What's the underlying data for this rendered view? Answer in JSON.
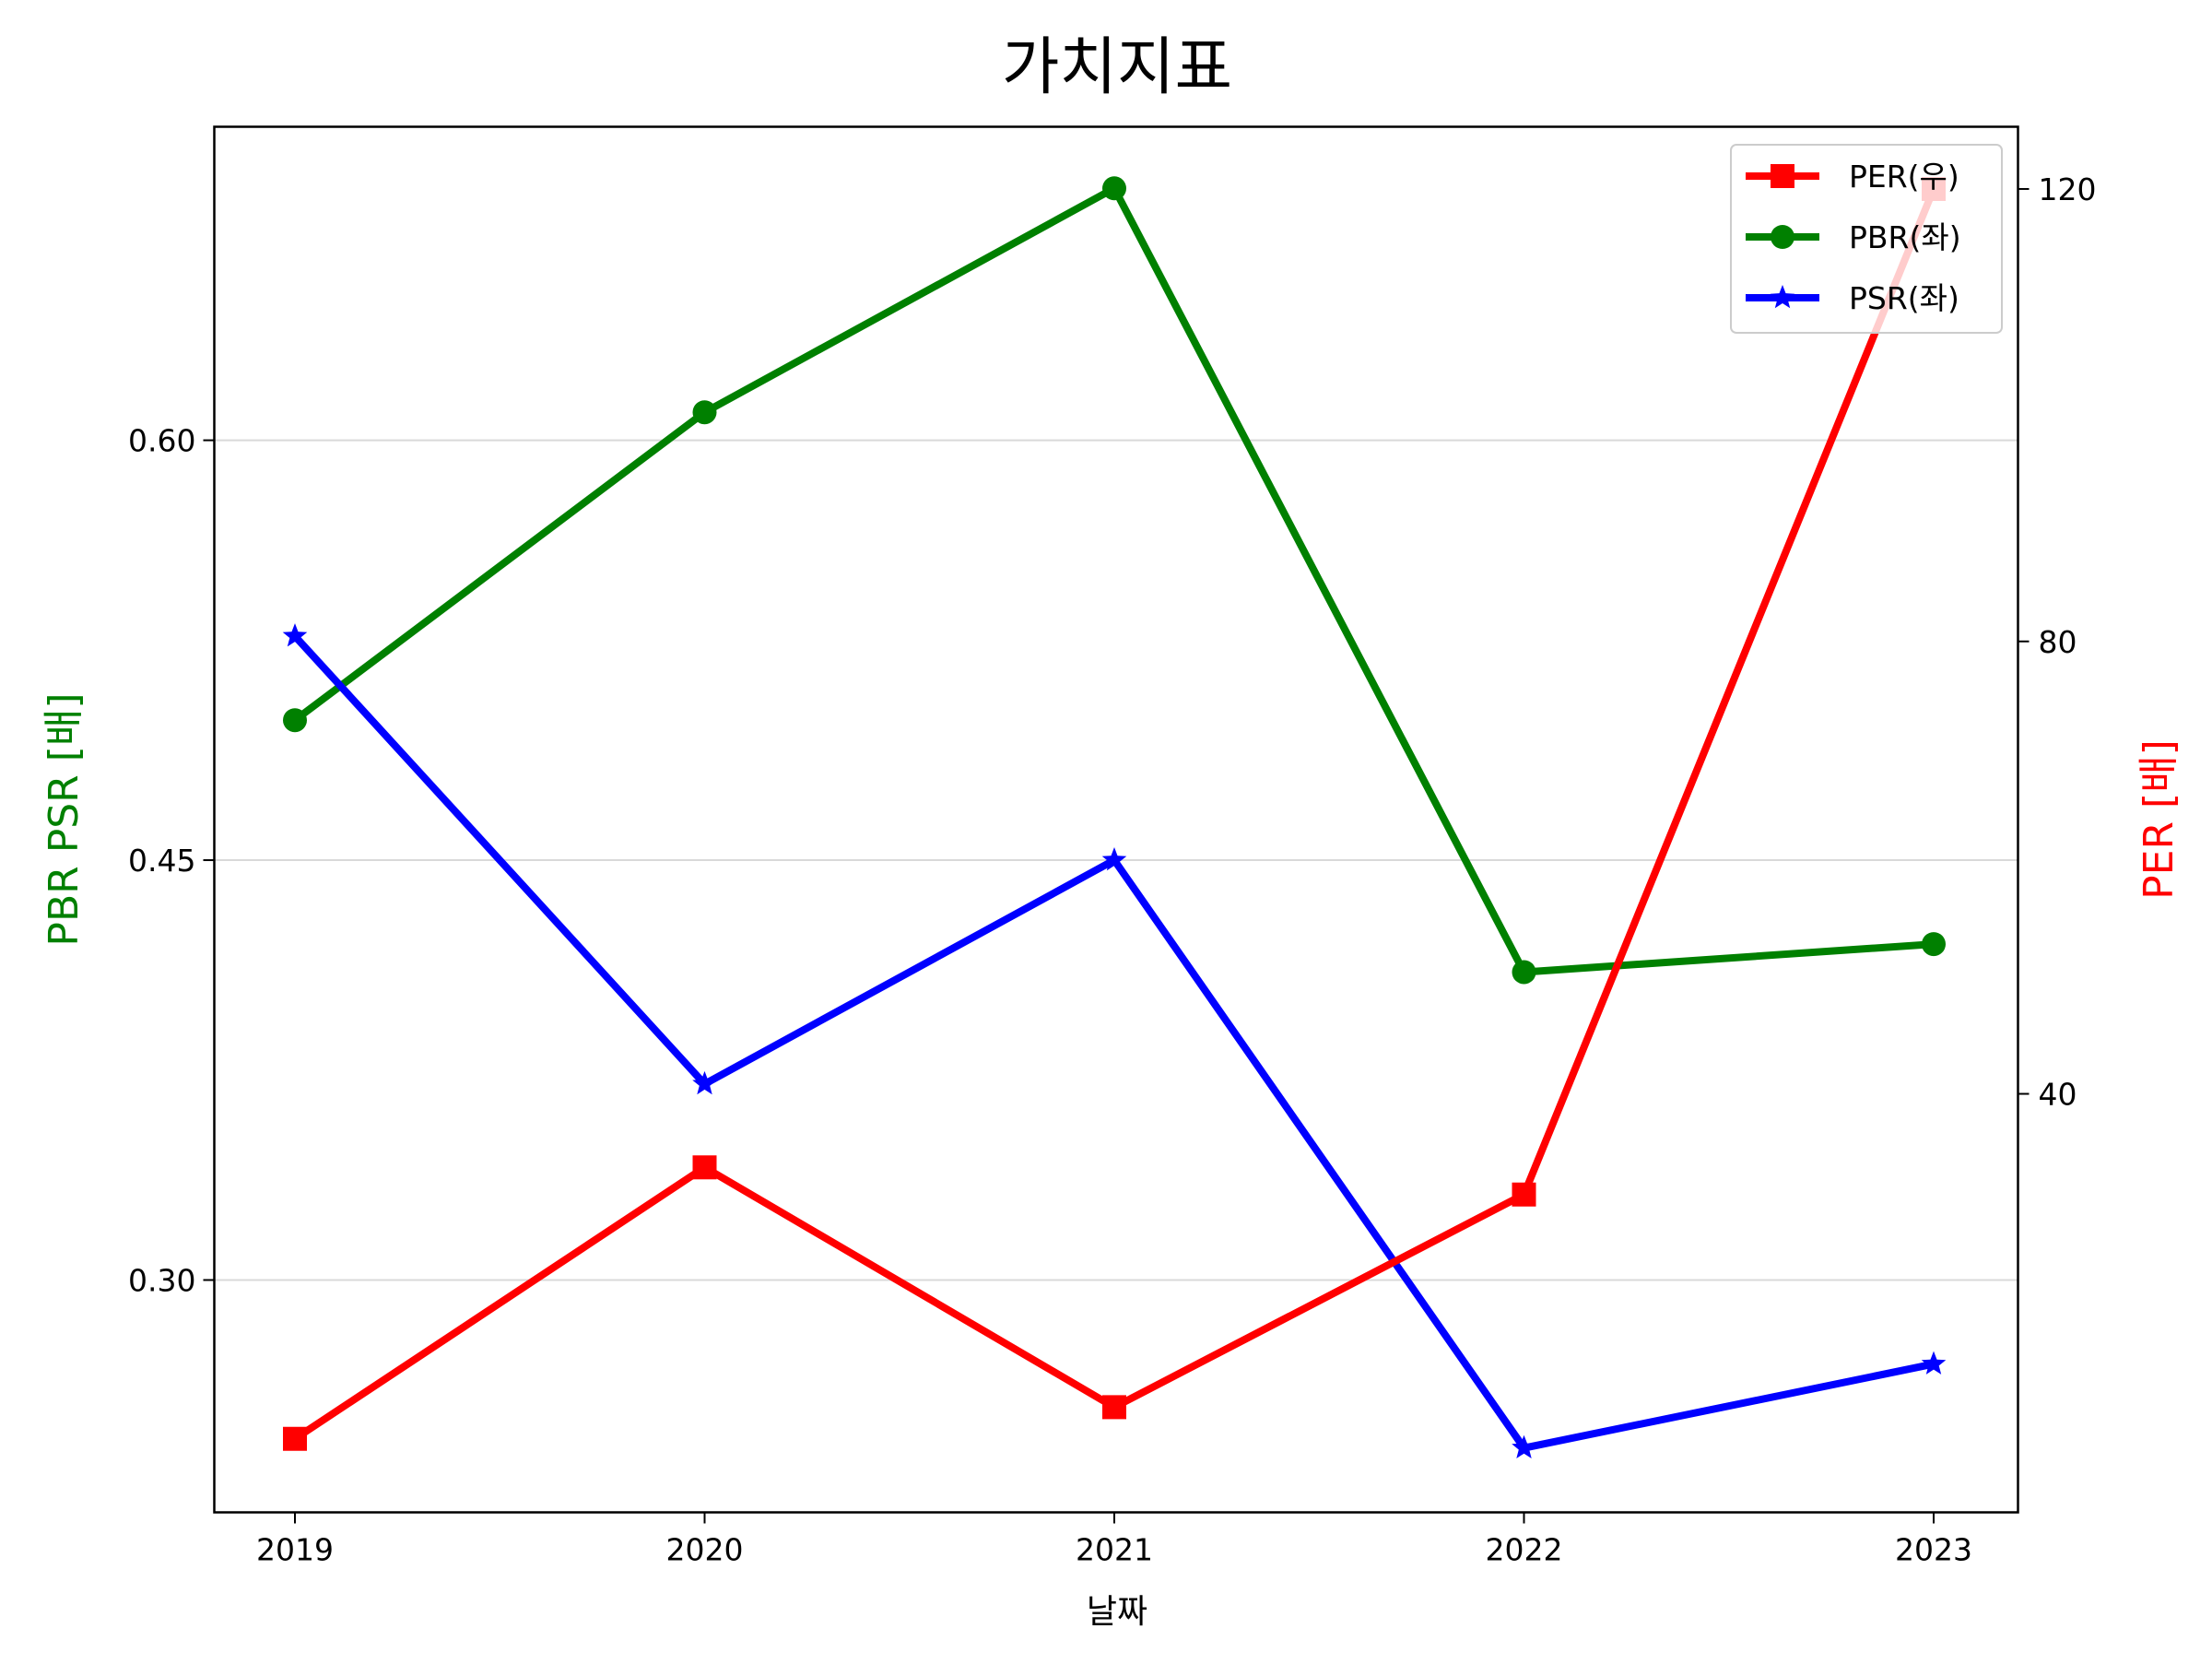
{
  "chart_data": {
    "type": "line",
    "title": "가치지표",
    "xlabel": "날짜",
    "ylabel_left": "PBR PSR [배]",
    "ylabel_right": "PER [배]",
    "categories": [
      "2019",
      "2020",
      "2021",
      "2022",
      "2023"
    ],
    "left_axis": {
      "ylim": [
        0.217,
        0.712
      ],
      "ticks": [
        0.3,
        0.45,
        0.6
      ],
      "tick_labels": [
        "0.30",
        "0.45",
        "0.60"
      ],
      "grid": true
    },
    "right_axis": {
      "ylim": [
        3.0,
        125.5
      ],
      "ticks": [
        40,
        80,
        120
      ],
      "tick_labels": [
        "40",
        "80",
        "120"
      ]
    },
    "series": [
      {
        "name": "PER(우)",
        "axis": "right",
        "marker": "square",
        "color": "#ff0000",
        "values": [
          9.5,
          33.5,
          12.3,
          31.1,
          120.0
        ]
      },
      {
        "name": "PBR(좌)",
        "axis": "left",
        "marker": "circle",
        "color": "#008000",
        "values": [
          0.5,
          0.61,
          0.69,
          0.41,
          0.42
        ]
      },
      {
        "name": "PSR(좌)",
        "axis": "left",
        "marker": "star",
        "color": "#0000ff",
        "values": [
          0.53,
          0.37,
          0.45,
          0.24,
          0.27
        ]
      }
    ],
    "legend_position": "top-right",
    "colors": {
      "left_label": "#008000",
      "right_label": "#ff0000",
      "grid": "#d9d9d9",
      "axis": "#000000"
    }
  }
}
